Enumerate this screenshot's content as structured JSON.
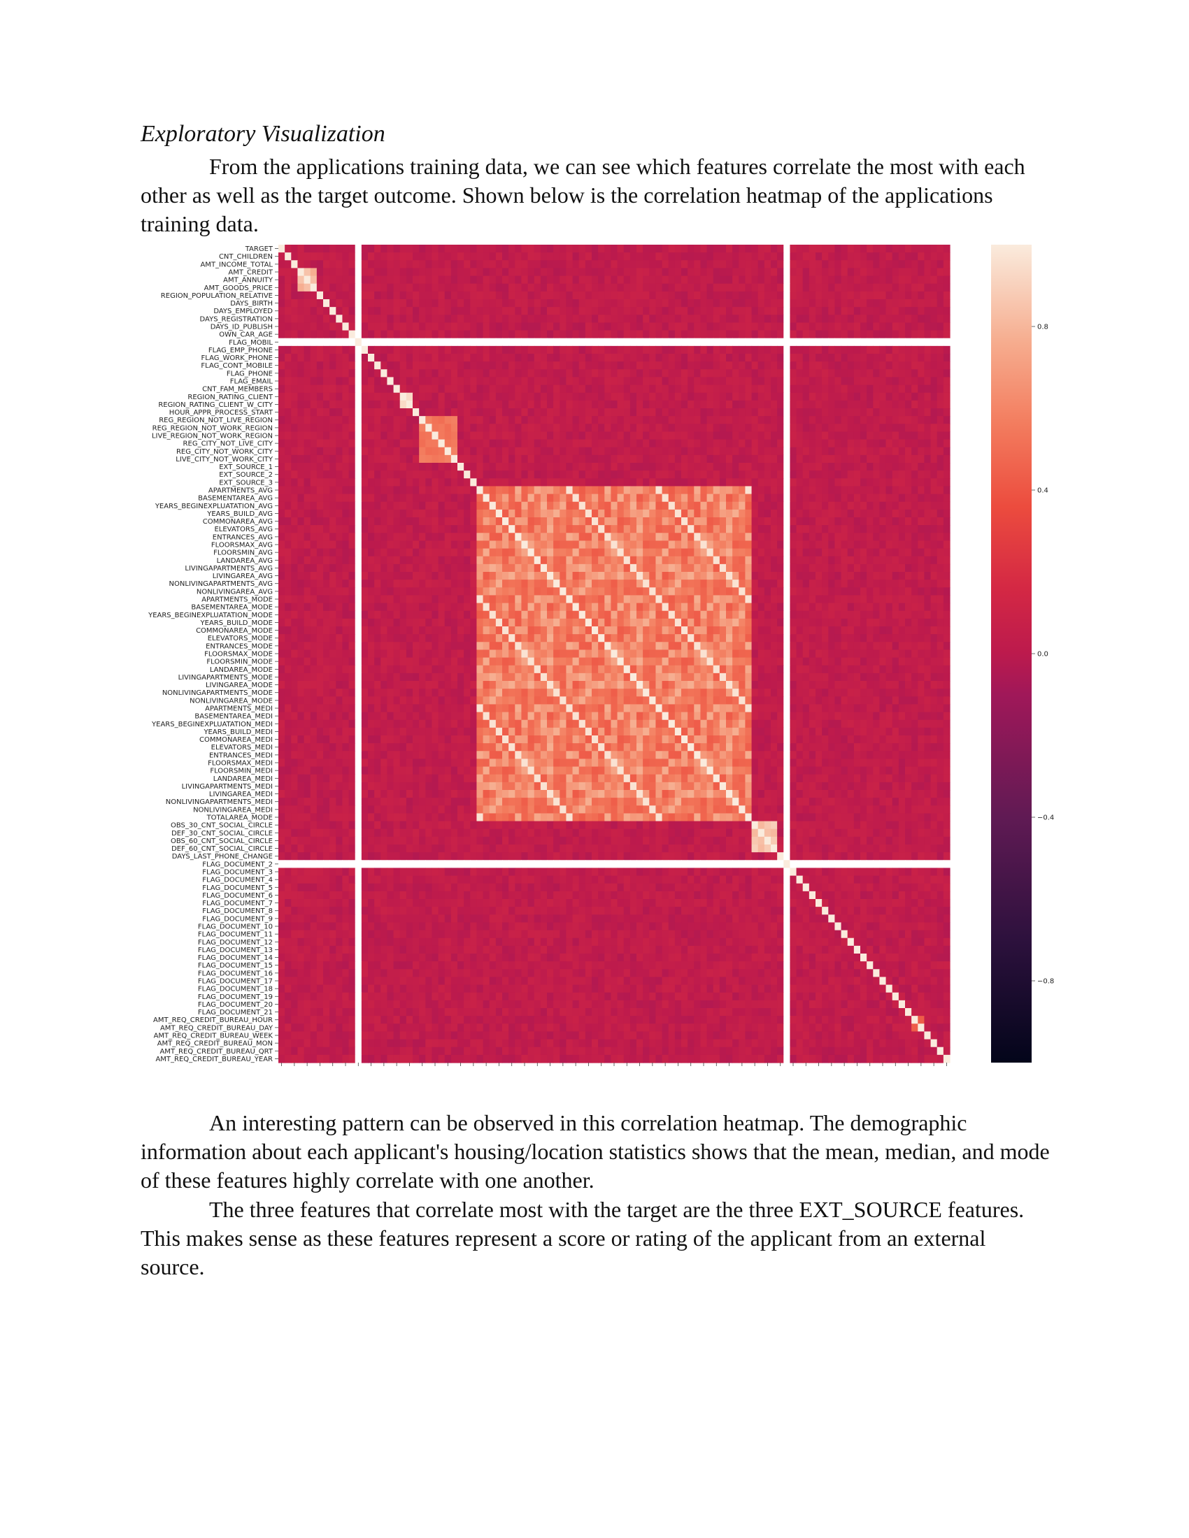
{
  "section_title": "Exploratory Visualization",
  "paragraphs": {
    "intro": "From the applications training data, we can see which features correlate the most with each other as well as the target outcome. Shown below is the correlation heatmap of the applications training data.",
    "pattern": "An interesting pattern can be observed in this correlation heatmap. The demographic information about each applicant's housing/location statistics shows that the mean, median, and mode of these features highly correlate with one another.",
    "ext_source": "The three features that correlate most with the target are the three EXT_SOURCE features. This makes sense as these features represent a score or rating of the applicant from an external source."
  },
  "chart_data": {
    "type": "heatmap",
    "title": "",
    "xlabel": "",
    "ylabel": "",
    "colormap": "rocket",
    "color_range": [
      -1.0,
      1.0
    ],
    "colorbar_ticks": [
      0.8,
      0.4,
      0.0,
      -0.4,
      -0.8
    ],
    "colorbar_tick_labels": [
      "0.8",
      "0.4",
      "0.0",
      "−0.4",
      "−0.8"
    ],
    "row_labels": [
      "TARGET",
      "CNT_CHILDREN",
      "AMT_INCOME_TOTAL",
      "AMT_CREDIT",
      "AMT_ANNUITY",
      "AMT_GOODS_PRICE",
      "REGION_POPULATION_RELATIVE",
      "DAYS_BIRTH",
      "DAYS_EMPLOYED",
      "DAYS_REGISTRATION",
      "DAYS_ID_PUBLISH",
      "OWN_CAR_AGE",
      "FLAG_MOBIL",
      "FLAG_EMP_PHONE",
      "FLAG_WORK_PHONE",
      "FLAG_CONT_MOBILE",
      "FLAG_PHONE",
      "FLAG_EMAIL",
      "CNT_FAM_MEMBERS",
      "REGION_RATING_CLIENT",
      "REGION_RATING_CLIENT_W_CITY",
      "HOUR_APPR_PROCESS_START",
      "REG_REGION_NOT_LIVE_REGION",
      "REG_REGION_NOT_WORK_REGION",
      "LIVE_REGION_NOT_WORK_REGION",
      "REG_CITY_NOT_LIVE_CITY",
      "REG_CITY_NOT_WORK_CITY",
      "LIVE_CITY_NOT_WORK_CITY",
      "EXT_SOURCE_1",
      "EXT_SOURCE_2",
      "EXT_SOURCE_3",
      "APARTMENTS_AVG",
      "BASEMENTAREA_AVG",
      "YEARS_BEGINEXPLUATATION_AVG",
      "YEARS_BUILD_AVG",
      "COMMONAREA_AVG",
      "ELEVATORS_AVG",
      "ENTRANCES_AVG",
      "FLOORSMAX_AVG",
      "FLOORSMIN_AVG",
      "LANDAREA_AVG",
      "LIVINGAPARTMENTS_AVG",
      "LIVINGAREA_AVG",
      "NONLIVINGAPARTMENTS_AVG",
      "NONLIVINGAREA_AVG",
      "APARTMENTS_MODE",
      "BASEMENTAREA_MODE",
      "YEARS_BEGINEXPLUATATION_MODE",
      "YEARS_BUILD_MODE",
      "COMMONAREA_MODE",
      "ELEVATORS_MODE",
      "ENTRANCES_MODE",
      "FLOORSMAX_MODE",
      "FLOORSMIN_MODE",
      "LANDAREA_MODE",
      "LIVINGAPARTMENTS_MODE",
      "LIVINGAREA_MODE",
      "NONLIVINGAPARTMENTS_MODE",
      "NONLIVINGAREA_MODE",
      "APARTMENTS_MEDI",
      "BASEMENTAREA_MEDI",
      "YEARS_BEGINEXPLUATATION_MEDI",
      "YEARS_BUILD_MEDI",
      "COMMONAREA_MEDI",
      "ELEVATORS_MEDI",
      "ENTRANCES_MEDI",
      "FLOORSMAX_MEDI",
      "FLOORSMIN_MEDI",
      "LANDAREA_MEDI",
      "LIVINGAPARTMENTS_MEDI",
      "LIVINGAREA_MEDI",
      "NONLIVINGAPARTMENTS_MEDI",
      "NONLIVINGAREA_MEDI",
      "TOTALAREA_MODE",
      "OBS_30_CNT_SOCIAL_CIRCLE",
      "DEF_30_CNT_SOCIAL_CIRCLE",
      "OBS_60_CNT_SOCIAL_CIRCLE",
      "DEF_60_CNT_SOCIAL_CIRCLE",
      "DAYS_LAST_PHONE_CHANGE",
      "FLAG_DOCUMENT_2",
      "FLAG_DOCUMENT_3",
      "FLAG_DOCUMENT_4",
      "FLAG_DOCUMENT_5",
      "FLAG_DOCUMENT_6",
      "FLAG_DOCUMENT_7",
      "FLAG_DOCUMENT_8",
      "FLAG_DOCUMENT_9",
      "FLAG_DOCUMENT_10",
      "FLAG_DOCUMENT_11",
      "FLAG_DOCUMENT_12",
      "FLAG_DOCUMENT_13",
      "FLAG_DOCUMENT_14",
      "FLAG_DOCUMENT_15",
      "FLAG_DOCUMENT_16",
      "FLAG_DOCUMENT_17",
      "FLAG_DOCUMENT_18",
      "FLAG_DOCUMENT_19",
      "FLAG_DOCUMENT_20",
      "FLAG_DOCUMENT_21",
      "AMT_REQ_CREDIT_BUREAU_HOUR",
      "AMT_REQ_CREDIT_BUREAU_DAY",
      "AMT_REQ_CREDIT_BUREAU_WEEK",
      "AMT_REQ_CREDIT_BUREAU_MON",
      "AMT_REQ_CREDIT_BUREAU_QRT",
      "AMT_REQ_CREDIT_BUREAU_YEAR"
    ],
    "high_correlation_blocks": [
      {
        "rows": [
          "AMT_CREDIT",
          "AMT_GOODS_PRICE"
        ],
        "approx_r": 0.85
      },
      {
        "rows": [
          "REGION_RATING_CLIENT",
          "REGION_RATING_CLIENT_W_CITY"
        ],
        "approx_r": 0.95
      },
      {
        "rows": [
          "REG_REGION_NOT_LIVE_REGION",
          "LIVE_CITY_NOT_WORK_CITY"
        ],
        "approx_r": 0.6
      },
      {
        "rows": [
          "APARTMENTS_AVG",
          "TOTALAREA_MODE"
        ],
        "approx_r": 0.7
      },
      {
        "rows": [
          "OBS_30_CNT_SOCIAL_CIRCLE",
          "DEF_60_CNT_SOCIAL_CIRCLE"
        ],
        "approx_r": 0.9
      },
      {
        "rows": [
          "AMT_REQ_CREDIT_BUREAU_HOUR",
          "AMT_REQ_CREDIT_BUREAU_DAY"
        ],
        "approx_r": 0.5
      }
    ],
    "undefined_rows": [
      "FLAG_MOBIL",
      "FLAG_DOCUMENT_2"
    ],
    "diagonal": 1.0
  }
}
